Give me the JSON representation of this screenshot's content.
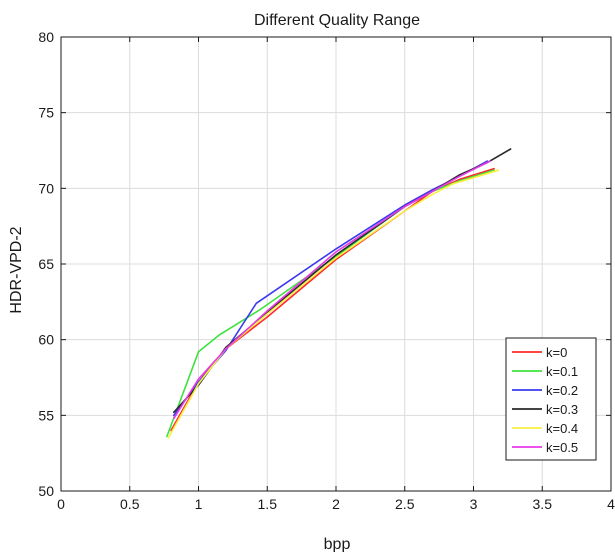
{
  "chart_data": {
    "type": "line",
    "title": "Different Quality Range",
    "xlabel": "bpp",
    "ylabel": "HDR-VPD-2",
    "xlim": [
      0,
      4
    ],
    "ylim": [
      50,
      80
    ],
    "xticks": [
      "0",
      "0.5",
      "1",
      "1.5",
      "2",
      "2.5",
      "3",
      "3.5",
      "4"
    ],
    "yticks": [
      "50",
      "55",
      "60",
      "65",
      "70",
      "75",
      "80"
    ],
    "grid": true,
    "legend_position": "bottom-right",
    "series": [
      {
        "name": "k=0",
        "color": "#ff2a2a",
        "x": [
          0.8,
          1.0,
          1.2,
          1.5,
          2.0,
          2.5,
          2.7,
          2.9,
          3.15
        ],
        "y": [
          54.0,
          57.2,
          59.4,
          61.5,
          65.3,
          68.5,
          69.8,
          70.6,
          71.3
        ]
      },
      {
        "name": "k=0.1",
        "color": "#3ee23e",
        "x": [
          0.77,
          1.0,
          1.15,
          1.45,
          2.0,
          2.5,
          2.7,
          2.9,
          3.15
        ],
        "y": [
          53.6,
          59.2,
          60.3,
          62.0,
          65.5,
          68.8,
          69.8,
          70.5,
          71.2
        ]
      },
      {
        "name": "k=0.2",
        "color": "#3a3aee",
        "x": [
          0.82,
          1.0,
          1.2,
          1.42,
          2.0,
          2.5,
          2.7,
          2.9,
          3.1
        ],
        "y": [
          55.0,
          57.2,
          59.3,
          62.4,
          66.0,
          68.9,
          69.9,
          70.8,
          71.8
        ]
      },
      {
        "name": "k=0.3",
        "color": "#2a2a2a",
        "x": [
          0.82,
          1.0,
          1.2,
          1.5,
          2.0,
          2.5,
          2.7,
          2.9,
          3.1,
          3.27
        ],
        "y": [
          55.2,
          57.0,
          59.5,
          61.8,
          65.6,
          68.8,
          69.8,
          70.9,
          71.7,
          72.6
        ]
      },
      {
        "name": "k=0.4",
        "color": "#f7f040",
        "x": [
          0.78,
          1.0,
          1.2,
          1.5,
          2.0,
          2.5,
          2.7,
          2.85,
          3.0,
          3.18
        ],
        "y": [
          53.5,
          57.1,
          59.4,
          61.7,
          65.4,
          68.5,
          69.6,
          70.3,
          70.7,
          71.2
        ]
      },
      {
        "name": "k=0.5",
        "color": "#e83ae8",
        "x": [
          0.82,
          1.0,
          1.2,
          1.5,
          2.0,
          2.5,
          2.7,
          2.9,
          3.12
        ],
        "y": [
          54.8,
          57.4,
          59.4,
          61.9,
          65.8,
          68.8,
          69.8,
          70.8,
          71.8
        ]
      }
    ]
  }
}
